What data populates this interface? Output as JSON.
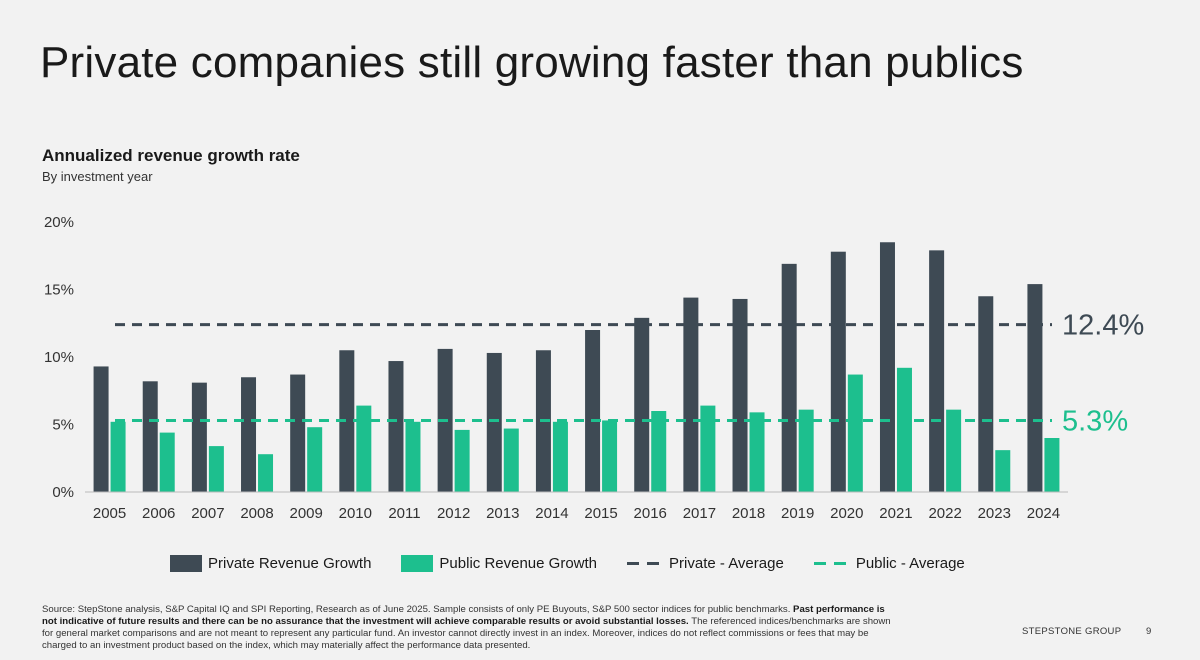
{
  "slide": {
    "title": "Private companies still growing faster than publics",
    "brand": "STEPSTONE GROUP",
    "page_number": "9"
  },
  "chart_data": {
    "type": "bar",
    "title": "Annualized revenue growth rate",
    "subtitle": "By investment year",
    "categories": [
      "2005",
      "2006",
      "2007",
      "2008",
      "2009",
      "2010",
      "2011",
      "2012",
      "2013",
      "2014",
      "2015",
      "2016",
      "2017",
      "2018",
      "2019",
      "2020",
      "2021",
      "2022",
      "2023",
      "2024"
    ],
    "series": [
      {
        "name": "Private Revenue Growth",
        "color": "#3e4a54",
        "values": [
          9.3,
          8.2,
          8.1,
          8.5,
          8.7,
          10.5,
          9.7,
          10.6,
          10.3,
          10.5,
          12.0,
          12.9,
          14.4,
          14.3,
          16.9,
          17.8,
          18.5,
          17.9,
          14.5,
          15.4
        ]
      },
      {
        "name": "Public Revenue Growth",
        "color": "#1dbf8e",
        "values": [
          5.2,
          4.4,
          3.4,
          2.8,
          4.8,
          6.4,
          5.2,
          4.6,
          4.7,
          5.2,
          5.3,
          6.0,
          6.4,
          5.9,
          6.1,
          8.7,
          9.2,
          6.1,
          3.1,
          4.0
        ]
      }
    ],
    "averages": [
      {
        "name": "Private - Average",
        "value": 12.4,
        "label": "12.4%",
        "color": "#3e4a54"
      },
      {
        "name": "Public - Average",
        "value": 5.3,
        "label": "5.3%",
        "color": "#1dbf8e"
      }
    ],
    "yticks": [
      "0%",
      "5%",
      "10%",
      "15%",
      "20%"
    ],
    "ylim": [
      0,
      20
    ],
    "xlabel": "",
    "ylabel": "",
    "grid": false,
    "legend_position": "bottom"
  },
  "legend": {
    "items": [
      {
        "label": "Private Revenue Growth"
      },
      {
        "label": "Public Revenue Growth"
      },
      {
        "label": "Private - Average"
      },
      {
        "label": "Public - Average"
      }
    ]
  },
  "footnote": {
    "text_start": "Source: StepStone analysis, S&P Capital IQ and SPI Reporting, Research as of June 2025. Sample consists of only PE Buyouts, S&P 500 sector indices for public benchmarks.",
    "bold": "Past performance is not indicative of future results and there can be no assurance that the investment will achieve comparable results or avoid substantial losses.",
    "text_end": "The referenced indices/benchmarks are shown for general market comparisons and are not meant to represent any particular fund. An investor cannot directly invest in an index. Moreover, indices do not reflect commissions or fees that may be charged to an investment product based on the index, which may materially affect the performance data presented."
  }
}
